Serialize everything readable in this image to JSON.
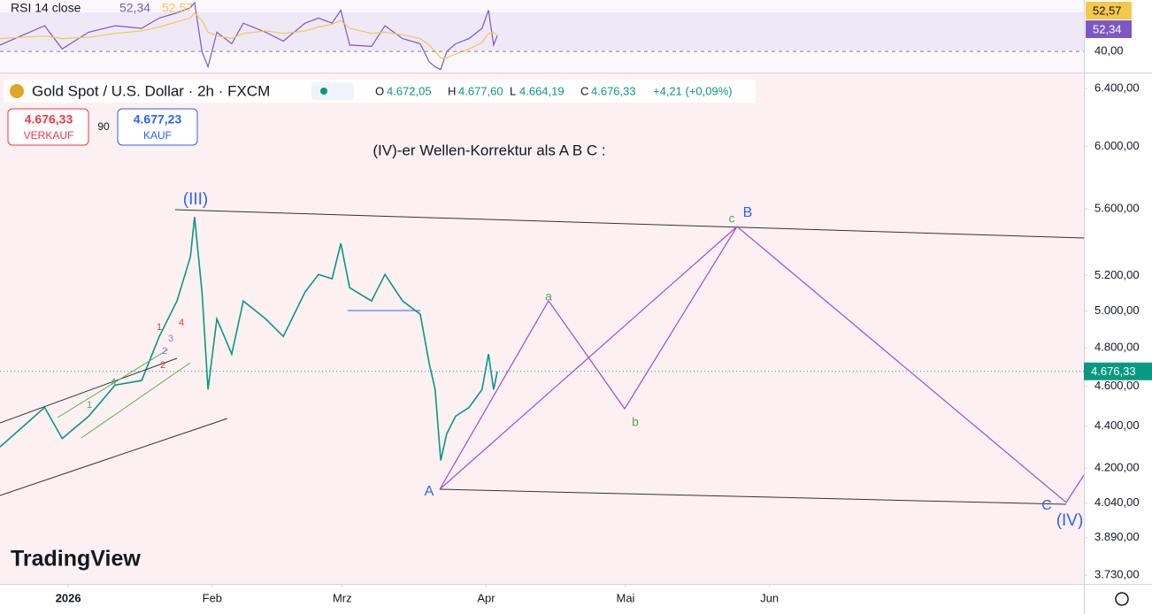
{
  "header": {
    "symbol": "Gold Spot / U.S. Dollar · 2h · FXCM",
    "o_label": "O",
    "open": "4.672,05",
    "h_label": "H",
    "high": "4.677,60",
    "l_label": "L",
    "low": "4.664,19",
    "c_label": "C",
    "close": "4.676,33",
    "change": "+4,21 (+0,09%)"
  },
  "trade": {
    "sell_price": "4.676,33",
    "sell": "VERKAUF",
    "spread": "90",
    "buy_price": "4.677,23",
    "buy": "KAUF"
  },
  "branding": "TradingView",
  "annotations": {
    "title": "(IV)-er Wellen-Korrektur als A B C :",
    "wave_iii": "(III)",
    "wave_iv": "(IV)",
    "A": "A",
    "B": "B",
    "C": "C",
    "a": "a",
    "b": "b",
    "c": "c",
    "sub": [
      "1",
      "2",
      "3",
      "4",
      "1",
      "2",
      "4"
    ]
  },
  "chart_data": [
    {
      "type": "line",
      "title": "RSI 14 close",
      "x": [
        -13.7,
        -4.1,
        -0.3,
        5.4,
        11.1,
        16.8,
        20.6,
        24.4,
        27.3,
        28.2,
        29.8,
        31.1,
        33,
        36.2,
        38.7,
        43.5,
        47.3,
        52,
        54.9,
        57.8,
        59.7,
        61.6,
        66.3,
        69.2,
        73,
        76.8,
        78.7,
        80,
        81.2,
        82.5,
        84.4,
        87.3,
        90.1,
        91.5,
        92.6,
        93.4
      ],
      "series": [
        {
          "color": "#7e57c2",
          "values": [
            45,
            60,
            42,
            55,
            60,
            58,
            66,
            70,
            74,
            78,
            40,
            28,
            55,
            46,
            62,
            55,
            48,
            62,
            66,
            62,
            72,
            45,
            44,
            60,
            50,
            46,
            32,
            28,
            26,
            40,
            46,
            50,
            58,
            72,
            45,
            52.34
          ],
          "value_labels": [
            null,
            null,
            null,
            null,
            null,
            null,
            null,
            null,
            null,
            null,
            null,
            null,
            null,
            null,
            null,
            null,
            null,
            null,
            null,
            null,
            null,
            null,
            null,
            null,
            null,
            null,
            null,
            null,
            null,
            null,
            null,
            null,
            null,
            null,
            null,
            "52,34"
          ]
        },
        {
          "color": "#f2c94c",
          "values": [
            50,
            52,
            50,
            51,
            54,
            56,
            59,
            63,
            66,
            70,
            64,
            55,
            52,
            50,
            54,
            56,
            54,
            56,
            59,
            61,
            64,
            58,
            54,
            55,
            53,
            50,
            45,
            40,
            35,
            35,
            38,
            42,
            47,
            54,
            55,
            52.57
          ],
          "value_labels": [
            null,
            null,
            null,
            null,
            null,
            null,
            null,
            null,
            null,
            null,
            null,
            null,
            null,
            null,
            null,
            null,
            null,
            null,
            null,
            null,
            null,
            null,
            null,
            null,
            null,
            null,
            null,
            null,
            null,
            null,
            null,
            null,
            null,
            null,
            null,
            "52,57"
          ]
        }
      ],
      "xlim": [
        -13.7,
        219.7
      ],
      "ylim": [
        25,
        80
      ],
      "yticks": [
        {
          "value": 40,
          "label": "40,00"
        }
      ]
    },
    {
      "type": "line",
      "log_scale": true,
      "x": [
        -13.7,
        -4.1,
        -0.3,
        5.4,
        11.1,
        16.8,
        20.6,
        24.4,
        27.3,
        28.2,
        29.8,
        31.1,
        33,
        36.2,
        38.7,
        43.5,
        47.3,
        52,
        54.9,
        57.8,
        59.7,
        61.6,
        66.3,
        69.2,
        73,
        76.8,
        78.7,
        80,
        81.2,
        82.5,
        84.4,
        87.3,
        90.1,
        91.5,
        92.6,
        93.4
      ],
      "series": [
        {
          "color": "#089981",
          "values": [
            4300,
            4493,
            4341,
            4449,
            4606,
            4629,
            4861,
            5056,
            5310,
            5550,
            5107,
            4583,
            4957,
            4767,
            5056,
            4957,
            4861,
            5107,
            5207,
            5182,
            5389,
            5131,
            5056,
            5207,
            5056,
            4982,
            4720,
            4583,
            4236,
            4364,
            4449,
            4493,
            4583,
            4767,
            4583,
            4676.33
          ],
          "value_labels": [
            null,
            null,
            null,
            null,
            null,
            null,
            null,
            null,
            null,
            null,
            null,
            null,
            null,
            null,
            null,
            null,
            null,
            null,
            null,
            null,
            null,
            null,
            null,
            null,
            null,
            null,
            null,
            null,
            null,
            null,
            null,
            null,
            null,
            null,
            null,
            "4.676,33"
          ]
        }
      ],
      "xlim": [
        -13.7,
        219.7
      ],
      "ylim": [
        3694,
        6508
      ],
      "xticks": [
        {
          "value": 1,
          "label": "2026"
        },
        {
          "value": 32,
          "label": "Feb"
        },
        {
          "value": 60,
          "label": "Mrz"
        },
        {
          "value": 91,
          "label": "Apr"
        },
        {
          "value": 121,
          "label": "Mai"
        },
        {
          "value": 152,
          "label": "Jun"
        }
      ],
      "yticks": [
        {
          "value": 6400,
          "label": "6.400,00"
        },
        {
          "value": 6000,
          "label": "6.000,00"
        },
        {
          "value": 5600,
          "label": "5.600,00"
        },
        {
          "value": 5200,
          "label": "5.200,00"
        },
        {
          "value": 5000,
          "label": "5.000,00"
        },
        {
          "value": 4800,
          "label": "4.800,00"
        },
        {
          "value": 4600,
          "label": "4.600,00"
        },
        {
          "value": 4400,
          "label": "4.400,00"
        },
        {
          "value": 4200,
          "label": "4.200,00"
        },
        {
          "value": 4040,
          "label": "4.040,00"
        },
        {
          "value": 3890,
          "label": "3.890,00"
        },
        {
          "value": 3730,
          "label": "3.730,00"
        }
      ]
    }
  ]
}
